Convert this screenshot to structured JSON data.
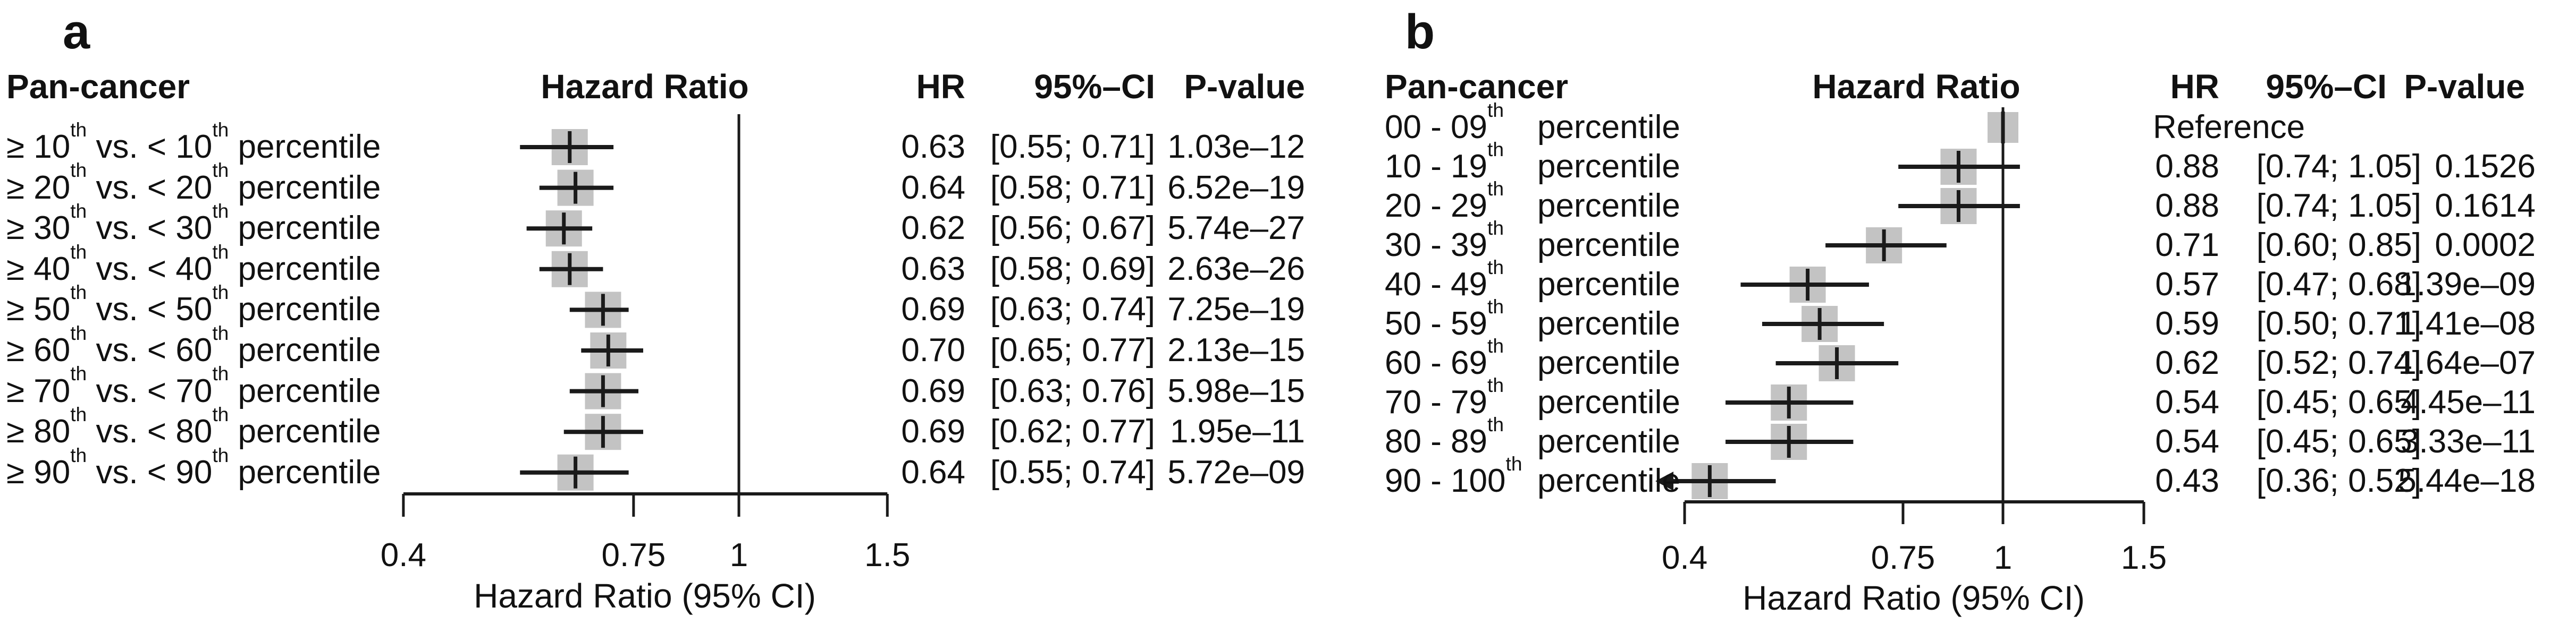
{
  "figure": {
    "background": "#ffffff",
    "marker_color": "#c3c3c3",
    "line_color": "#1a1a1a"
  },
  "chart_data": [
    {
      "type": "scatter",
      "variant": "forest-plot",
      "panel_label": "a",
      "title": "Pan-cancer",
      "plot_header": "Hazard Ratio",
      "columns": {
        "hr": "HR",
        "ci": "95%–CI",
        "p": "P-value"
      },
      "xlabel": "Hazard Ratio (95% CI)",
      "xscale": "log",
      "xlim": [
        0.4,
        1.5
      ],
      "xticks": [
        0.4,
        0.75,
        1,
        1.5
      ],
      "xtick_labels": [
        "0.4",
        "0.75",
        "1",
        "1.5"
      ],
      "ref_line": 1,
      "grid": false,
      "rows": [
        {
          "label": "≥ 10th vs. < 10th percentile",
          "hr": 0.63,
          "lo": 0.55,
          "hi": 0.71,
          "hr_text": "0.63",
          "ci_text": "[0.55; 0.71]",
          "p_text": "1.03e–12"
        },
        {
          "label": "≥ 20th vs. < 20th percentile",
          "hr": 0.64,
          "lo": 0.58,
          "hi": 0.71,
          "hr_text": "0.64",
          "ci_text": "[0.58; 0.71]",
          "p_text": "6.52e–19"
        },
        {
          "label": "≥ 30th vs. < 30th percentile",
          "hr": 0.62,
          "lo": 0.56,
          "hi": 0.67,
          "hr_text": "0.62",
          "ci_text": "[0.56; 0.67]",
          "p_text": "5.74e–27"
        },
        {
          "label": "≥ 40th vs. < 40th percentile",
          "hr": 0.63,
          "lo": 0.58,
          "hi": 0.69,
          "hr_text": "0.63",
          "ci_text": "[0.58; 0.69]",
          "p_text": "2.63e–26"
        },
        {
          "label": "≥ 50th vs. < 50th percentile",
          "hr": 0.69,
          "lo": 0.63,
          "hi": 0.74,
          "hr_text": "0.69",
          "ci_text": "[0.63; 0.74]",
          "p_text": "7.25e–19"
        },
        {
          "label": "≥ 60th vs. < 60th percentile",
          "hr": 0.7,
          "lo": 0.65,
          "hi": 0.77,
          "hr_text": "0.70",
          "ci_text": "[0.65; 0.77]",
          "p_text": "2.13e–15"
        },
        {
          "label": "≥ 70th vs. < 70th percentile",
          "hr": 0.69,
          "lo": 0.63,
          "hi": 0.76,
          "hr_text": "0.69",
          "ci_text": "[0.63; 0.76]",
          "p_text": "5.98e–15"
        },
        {
          "label": "≥ 80th vs. < 80th percentile",
          "hr": 0.69,
          "lo": 0.62,
          "hi": 0.77,
          "hr_text": "0.69",
          "ci_text": "[0.62; 0.77]",
          "p_text": "1.95e–11"
        },
        {
          "label": "≥ 90th vs. < 90th percentile",
          "hr": 0.64,
          "lo": 0.55,
          "hi": 0.74,
          "hr_text": "0.64",
          "ci_text": "[0.55; 0.74]",
          "p_text": "5.72e–09"
        }
      ]
    },
    {
      "type": "scatter",
      "variant": "forest-plot",
      "panel_label": "b",
      "title": "Pan-cancer",
      "plot_header": "Hazard Ratio",
      "columns": {
        "hr": "HR",
        "ci": "95%–CI",
        "p": "P-value"
      },
      "xlabel": "Hazard Ratio (95% CI)",
      "xscale": "log",
      "xlim": [
        0.4,
        1.5
      ],
      "xticks": [
        0.4,
        0.75,
        1,
        1.5
      ],
      "xtick_labels": [
        "0.4",
        "0.75",
        "1",
        "1.5"
      ],
      "ref_line": 1,
      "grid": false,
      "rows": [
        {
          "range": "00 - 09th",
          "word": "percentile",
          "hr": 1.0,
          "reference": true,
          "hr_text": "Reference",
          "ci_text": "",
          "p_text": ""
        },
        {
          "range": "10 - 19th",
          "word": "percentile",
          "hr": 0.88,
          "lo": 0.74,
          "hi": 1.05,
          "hr_text": "0.88",
          "ci_text": "[0.74; 1.05]",
          "p_text": "0.1526"
        },
        {
          "range": "20 - 29th",
          "word": "percentile",
          "hr": 0.88,
          "lo": 0.74,
          "hi": 1.05,
          "hr_text": "0.88",
          "ci_text": "[0.74; 1.05]",
          "p_text": "0.1614"
        },
        {
          "range": "30 - 39th",
          "word": "percentile",
          "hr": 0.71,
          "lo": 0.6,
          "hi": 0.85,
          "hr_text": "0.71",
          "ci_text": "[0.60; 0.85]",
          "p_text": "0.0002"
        },
        {
          "range": "40 - 49th",
          "word": "percentile",
          "hr": 0.57,
          "lo": 0.47,
          "hi": 0.68,
          "hr_text": "0.57",
          "ci_text": "[0.47; 0.68]",
          "p_text": "1.39e–09"
        },
        {
          "range": "50 - 59th",
          "word": "percentile",
          "hr": 0.59,
          "lo": 0.5,
          "hi": 0.71,
          "hr_text": "0.59",
          "ci_text": "[0.50; 0.71]",
          "p_text": "1.41e–08"
        },
        {
          "range": "60 - 69th",
          "word": "percentile",
          "hr": 0.62,
          "lo": 0.52,
          "hi": 0.74,
          "hr_text": "0.62",
          "ci_text": "[0.52; 0.74]",
          "p_text": "1.64e–07"
        },
        {
          "range": "70 - 79th",
          "word": "percentile",
          "hr": 0.54,
          "lo": 0.45,
          "hi": 0.65,
          "hr_text": "0.54",
          "ci_text": "[0.45; 0.65]",
          "p_text": "4.45e–11"
        },
        {
          "range": "80 - 89th",
          "word": "percentile",
          "hr": 0.54,
          "lo": 0.45,
          "hi": 0.65,
          "hr_text": "0.54",
          "ci_text": "[0.45; 0.65]",
          "p_text": "3.33e–11"
        },
        {
          "range": "90 - 100th",
          "word": "percentile",
          "hr": 0.43,
          "lo": 0.36,
          "hi": 0.52,
          "clip_lo": true,
          "hr_text": "0.43",
          "ci_text": "[0.36; 0.52]",
          "p_text": "5.44e–18"
        }
      ]
    }
  ]
}
